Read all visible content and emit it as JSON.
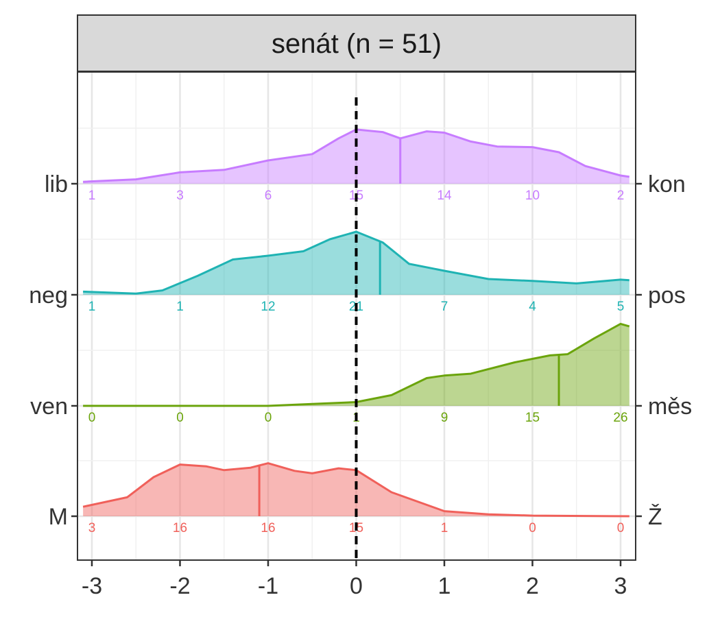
{
  "chart_data": {
    "type": "ridgeline",
    "panel_title": "senát (n = 51)",
    "x_range": [
      -3.1,
      3.1
    ],
    "x_ticks": [
      "-3",
      "-2",
      "-1",
      "0",
      "1",
      "2",
      "3"
    ],
    "reference_line_x": 0,
    "grid": true,
    "bins": [
      -3,
      -2,
      -1,
      0,
      1,
      2,
      3
    ],
    "series": [
      {
        "left_label": "lib",
        "right_label": "kon",
        "color": "#C77CFF",
        "fill": "#E1B3FF",
        "mean": 0.5,
        "counts": [
          1,
          3,
          6,
          15,
          14,
          10,
          2
        ],
        "density": [
          [
            -3.1,
            0.03
          ],
          [
            -2.5,
            0.07
          ],
          [
            -2,
            0.18
          ],
          [
            -1.5,
            0.22
          ],
          [
            -1,
            0.37
          ],
          [
            -0.5,
            0.47
          ],
          [
            -0.2,
            0.72
          ],
          [
            0,
            0.86
          ],
          [
            0.3,
            0.82
          ],
          [
            0.5,
            0.72
          ],
          [
            0.8,
            0.83
          ],
          [
            1,
            0.81
          ],
          [
            1.3,
            0.67
          ],
          [
            1.6,
            0.59
          ],
          [
            2,
            0.58
          ],
          [
            2.3,
            0.5
          ],
          [
            2.6,
            0.28
          ],
          [
            3,
            0.13
          ],
          [
            3.1,
            0.11
          ]
        ]
      },
      {
        "left_label": "neg",
        "right_label": "pos",
        "color": "#1FB3B3",
        "fill": "#A3E0E0",
        "mean": 0.27,
        "counts": [
          1,
          1,
          12,
          21,
          7,
          4,
          5
        ],
        "density": [
          [
            -3.1,
            0.05
          ],
          [
            -2.5,
            0.02
          ],
          [
            -2.2,
            0.07
          ],
          [
            -1.8,
            0.3
          ],
          [
            -1.4,
            0.56
          ],
          [
            -1,
            0.62
          ],
          [
            -0.6,
            0.69
          ],
          [
            -0.3,
            0.88
          ],
          [
            0,
            1.0
          ],
          [
            0.3,
            0.83
          ],
          [
            0.6,
            0.49
          ],
          [
            1,
            0.38
          ],
          [
            1.5,
            0.25
          ],
          [
            2,
            0.22
          ],
          [
            2.5,
            0.18
          ],
          [
            3,
            0.24
          ],
          [
            3.1,
            0.23
          ]
        ]
      },
      {
        "left_label": "ven",
        "right_label": "měs",
        "color": "#6BA40C",
        "fill": "#C4DB9E",
        "mean": 2.3,
        "counts": [
          0,
          0,
          0,
          1,
          9,
          15,
          26
        ],
        "density": [
          [
            -3.1,
            0
          ],
          [
            -2,
            0
          ],
          [
            -1,
            0
          ],
          [
            -0.5,
            0.03
          ],
          [
            0,
            0.06
          ],
          [
            0.4,
            0.17
          ],
          [
            0.8,
            0.44
          ],
          [
            1,
            0.48
          ],
          [
            1.3,
            0.51
          ],
          [
            1.8,
            0.69
          ],
          [
            2.2,
            0.8
          ],
          [
            2.4,
            0.82
          ],
          [
            2.7,
            1.07
          ],
          [
            3,
            1.3
          ],
          [
            3.1,
            1.26
          ]
        ]
      },
      {
        "left_label": "M",
        "right_label": "Ž",
        "color": "#F0605A",
        "fill": "#F9BEBB",
        "mean": -1.1,
        "counts": [
          3,
          16,
          16,
          15,
          1,
          0,
          0
        ],
        "density": [
          [
            -3.1,
            0.15
          ],
          [
            -2.6,
            0.3
          ],
          [
            -2.3,
            0.62
          ],
          [
            -2,
            0.82
          ],
          [
            -1.7,
            0.79
          ],
          [
            -1.5,
            0.73
          ],
          [
            -1.2,
            0.77
          ],
          [
            -1,
            0.84
          ],
          [
            -0.7,
            0.72
          ],
          [
            -0.5,
            0.68
          ],
          [
            -0.2,
            0.76
          ],
          [
            0,
            0.73
          ],
          [
            0.4,
            0.38
          ],
          [
            1,
            0.08
          ],
          [
            1.5,
            0.03
          ],
          [
            2,
            0.01
          ],
          [
            3.1,
            0
          ]
        ]
      }
    ]
  }
}
